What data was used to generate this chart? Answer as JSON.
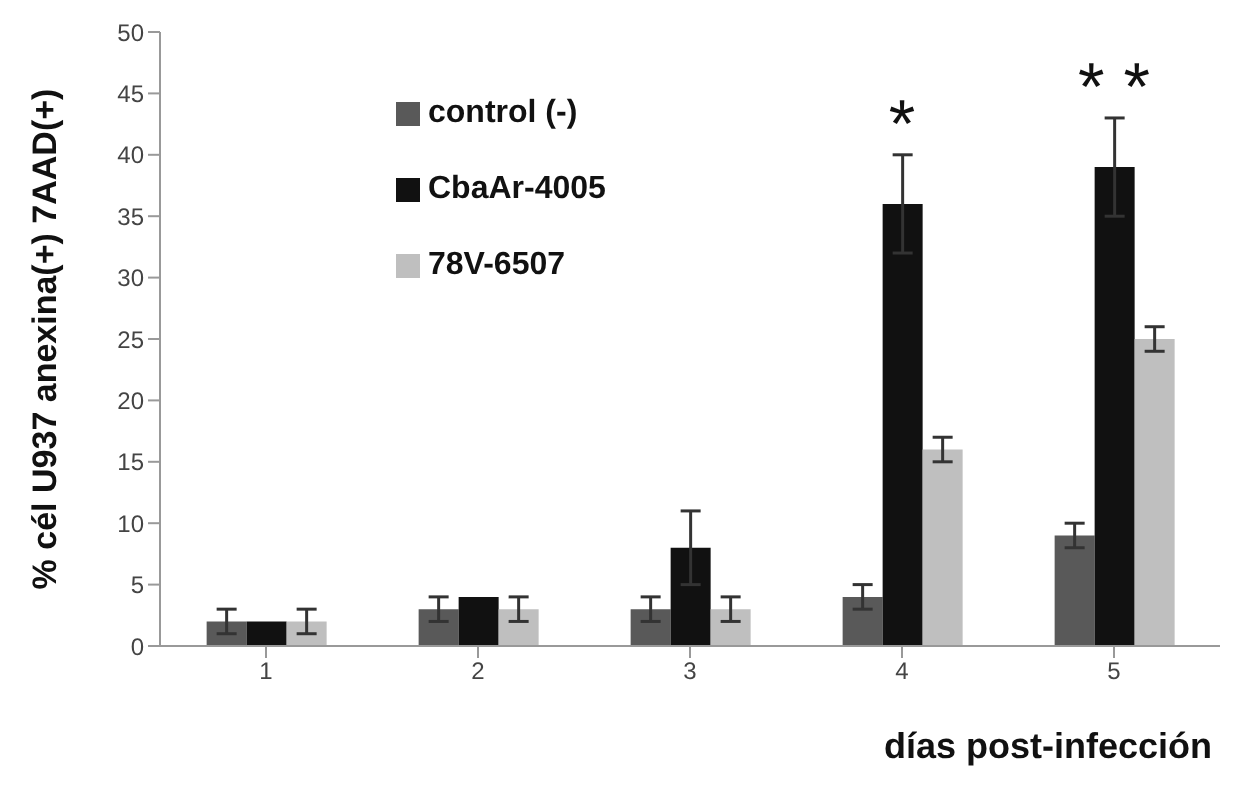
{
  "chart_data": {
    "type": "bar",
    "xlabel": "días post-infección",
    "ylabel": "% cél U937 anexina(+) 7AAD(+)",
    "categories": [
      "1",
      "2",
      "3",
      "4",
      "5"
    ],
    "series": [
      {
        "name": "control (-)",
        "color": "#595959",
        "values": [
          2,
          3,
          3,
          4,
          9
        ],
        "errors": [
          1,
          1,
          1,
          1,
          1
        ]
      },
      {
        "name": "CbaAr-4005",
        "color": "#111111",
        "values": [
          2,
          4,
          8,
          36,
          39
        ],
        "errors": [
          null,
          null,
          3,
          4,
          4
        ]
      },
      {
        "name": "78V-6507",
        "color": "#bfbfbf",
        "values": [
          2,
          3,
          3,
          16,
          25
        ],
        "errors": [
          1,
          1,
          1,
          1,
          1
        ]
      }
    ],
    "ylim": [
      0,
      50
    ],
    "yticks": [
      0,
      5,
      10,
      15,
      20,
      25,
      30,
      35,
      40,
      45,
      50
    ],
    "grid": false,
    "legend": "top left",
    "annotations": [
      "*",
      "* *"
    ]
  }
}
